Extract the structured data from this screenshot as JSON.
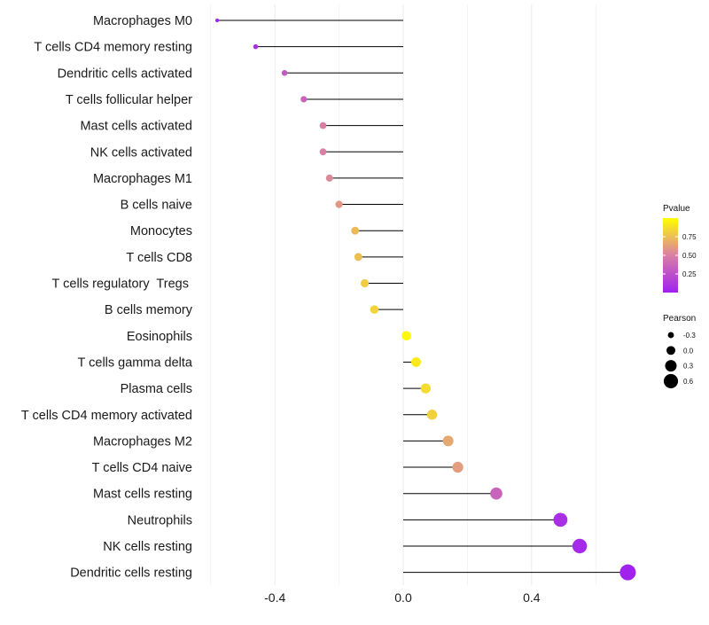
{
  "chart_data": {
    "type": "lollipop",
    "title": "",
    "xlabel": "",
    "ylabel": "",
    "xlim": [
      -0.6,
      0.72
    ],
    "xticks": [
      -0.4,
      0.0,
      0.4
    ],
    "xtick_labels": [
      "-0.4",
      "0.0",
      "0.4"
    ],
    "gridlines": true,
    "legend_position": "right",
    "categories": [
      "Macrophages M0",
      "T cells CD4 memory resting",
      "Dendritic cells activated",
      "T cells follicular helper",
      "Mast cells activated",
      "NK cells activated",
      "Macrophages M1",
      "B cells naive",
      "Monocytes",
      "T cells CD8",
      "T cells regulatory  Tregs ",
      "B cells memory",
      "Eosinophils",
      "T cells gamma delta",
      "Plasma cells",
      "T cells CD4 memory activated",
      "Macrophages M2",
      "T cells CD4 naive",
      "Mast cells resting",
      "Neutrophils",
      "NK cells resting",
      "Dendritic cells resting"
    ],
    "series": [
      {
        "name": "Pearson",
        "values": [
          -0.58,
          -0.46,
          -0.37,
          -0.31,
          -0.25,
          -0.25,
          -0.23,
          -0.2,
          -0.15,
          -0.14,
          -0.12,
          -0.09,
          0.01,
          0.04,
          0.07,
          0.09,
          0.14,
          0.17,
          0.29,
          0.49,
          0.55,
          0.7
        ]
      },
      {
        "name": "Pvalue",
        "values": [
          0.02,
          0.08,
          0.3,
          0.35,
          0.5,
          0.5,
          0.54,
          0.6,
          0.73,
          0.75,
          0.8,
          0.83,
          0.98,
          0.92,
          0.86,
          0.82,
          0.66,
          0.62,
          0.36,
          0.08,
          0.05,
          0.01
        ]
      }
    ],
    "legend": {
      "color": {
        "title": "Pvalue",
        "tick_values": [
          0.25,
          0.5,
          0.75
        ],
        "tick_labels": [
          "0.25",
          "0.50",
          "0.75"
        ],
        "range": [
          0,
          1
        ],
        "low_color": "#a020f0",
        "mid_color": "#d97fa6",
        "high_color": "#ffff00"
      },
      "size": {
        "title": "Pearson",
        "values": [
          -0.3,
          0.0,
          0.3,
          0.6
        ],
        "labels": [
          "-0.3",
          "0.0",
          "0.3",
          "0.6"
        ]
      }
    },
    "colors": {
      "stick": "#000000",
      "grid": "#ebebeb"
    }
  }
}
